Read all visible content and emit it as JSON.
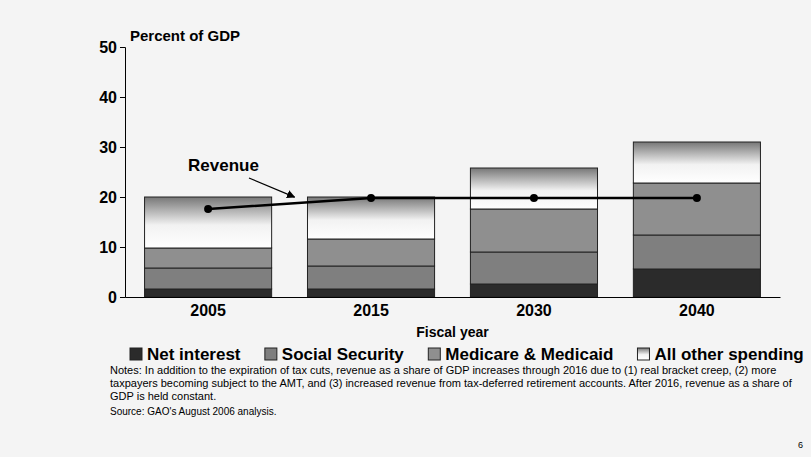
{
  "chart_data": {
    "type": "bar",
    "stacked": true,
    "y_label": "Percent of GDP",
    "x_label": "Fiscal year",
    "categories": [
      "2005",
      "2015",
      "2030",
      "2040"
    ],
    "series": [
      {
        "name": "Net interest",
        "color": "#2b2b2b",
        "values": [
          1.6,
          1.6,
          2.6,
          5.6
        ]
      },
      {
        "name": "Social Security",
        "color": "#7f7f7f",
        "values": [
          4.2,
          4.6,
          6.4,
          6.8
        ]
      },
      {
        "name": "Medicare & Medicaid",
        "color": "#8f8f8f",
        "values": [
          4.0,
          5.4,
          8.6,
          10.4
        ]
      },
      {
        "name": "All other spending",
        "color": "#f2f2f2",
        "values": [
          10.2,
          8.4,
          8.2,
          8.2
        ]
      },
      {
        "name": "Revenue",
        "type": "line",
        "color": "#000000",
        "marker": "circle",
        "values": [
          17.6,
          19.8,
          19.8,
          19.8
        ]
      }
    ],
    "ylim": [
      0,
      50
    ],
    "yticks": [
      0,
      10,
      20,
      30,
      40,
      50
    ],
    "legend": "bottom",
    "notes": "Notes: In addition to the expiration of tax cuts, revenue as a share of GDP increases through 2016 due to (1) real bracket creep, (2) more taxpayers becoming subject to the AMT, and (3) increased revenue from tax-deferred retirement accounts. After 2016, revenue as a share of GDP is held constant.",
    "source": "Source: GAO's August 2006 analysis.",
    "page_number": "6"
  }
}
